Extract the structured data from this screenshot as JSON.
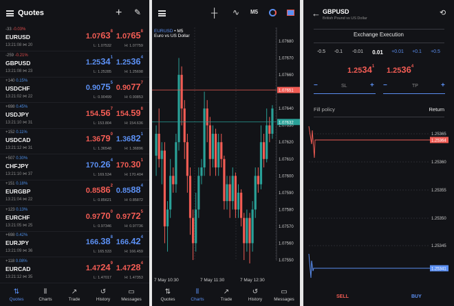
{
  "quotes": {
    "title": "Quotes",
    "rows": [
      {
        "pts": "-33",
        "pct": "-0.03%",
        "dir": "neg",
        "symbol": "EURUSD",
        "time": "13:21:08",
        "spread": "20",
        "bid_main": "1.07",
        "bid_big": "63",
        "bid_sup": "8",
        "ask_main": "1.07",
        "ask_big": "65",
        "ask_sup": "8",
        "low": "L: 1.07532",
        "high": "H: 1.07759",
        "color": "red"
      },
      {
        "pts": "-259",
        "pct": "-0.21%",
        "dir": "neg",
        "symbol": "GBPUSD",
        "time": "13:21:08",
        "spread": "23",
        "bid_main": "1.25",
        "bid_big": "34",
        "bid_sup": "1",
        "ask_main": "1.25",
        "ask_big": "36",
        "ask_sup": "4",
        "low": "L: 1.25285",
        "high": "H: 1.25698",
        "color": "blue"
      },
      {
        "pts": "+140",
        "pct": "0.15%",
        "dir": "pos",
        "symbol": "USDCHF",
        "time": "13:21:02",
        "spread": "22",
        "bid_main": "0.90",
        "bid_big": "75",
        "bid_sup": "5",
        "ask_main": "0.90",
        "ask_big": "77",
        "ask_sup": "7",
        "low": "L: 0.90499",
        "high": "H: 0.90853",
        "color": "mixed1"
      },
      {
        "pts": "+698",
        "pct": "0.45%",
        "dir": "pos",
        "symbol": "USDJPY",
        "time": "13:21:10",
        "spread": "31",
        "bid_main": "154.",
        "bid_big": "56",
        "bid_sup": "7",
        "ask_main": "154.",
        "ask_big": "59",
        "ask_sup": "8",
        "low": "L: 153.804",
        "high": "H: 154.636",
        "color": "red"
      },
      {
        "pts": "+152",
        "pct": "0.11%",
        "dir": "pos",
        "symbol": "USDCAD",
        "time": "13:21:12",
        "spread": "31",
        "bid_main": "1.36",
        "bid_big": "79",
        "bid_sup": "0",
        "ask_main": "1.36",
        "ask_big": "82",
        "ask_sup": "1",
        "low": "L: 1.36548",
        "high": "H: 1.36896",
        "color": "mixed2"
      },
      {
        "pts": "+507",
        "pct": "0.30%",
        "dir": "pos",
        "symbol": "CHFJPY",
        "time": "13:21:10",
        "spread": "37",
        "bid_main": "170.",
        "bid_big": "26",
        "bid_sup": "4",
        "ask_main": "170.",
        "ask_big": "30",
        "ask_sup": "1",
        "low": "L: 169.534",
        "high": "H: 170.404",
        "color": "mixed1"
      },
      {
        "pts": "+151",
        "pct": "0.18%",
        "dir": "pos",
        "symbol": "EURGBP",
        "time": "13:21:04",
        "spread": "22",
        "bid_main": "0.85",
        "bid_big": "86",
        "bid_sup": "2",
        "ask_main": "0.85",
        "ask_big": "88",
        "ask_sup": "4",
        "low": "L: 0.85621",
        "high": "H: 0.85872",
        "color": "mixed2"
      },
      {
        "pts": "+123",
        "pct": "0.13%",
        "dir": "pos",
        "symbol": "EURCHF",
        "time": "13:21:05",
        "spread": "25",
        "bid_main": "0.97",
        "bid_big": "70",
        "bid_sup": "0",
        "ask_main": "0.97",
        "ask_big": "72",
        "ask_sup": "5",
        "low": "L: 0.97346",
        "high": "H: 0.97736",
        "color": "mixed2"
      },
      {
        "pts": "+698",
        "pct": "0.42%",
        "dir": "pos",
        "symbol": "EURJPY",
        "time": "13:21:09",
        "spread": "36",
        "bid_main": "166.",
        "bid_big": "38",
        "bid_sup": "8",
        "ask_main": "166.",
        "ask_big": "42",
        "ask_sup": "4",
        "low": "L: 165.533",
        "high": "H: 166.459",
        "color": "blue"
      },
      {
        "pts": "+118",
        "pct": "0.08%",
        "dir": "pos",
        "symbol": "EURCAD",
        "time": "13:21:12",
        "spread": "35",
        "bid_main": "1.47",
        "bid_big": "24",
        "bid_sup": "9",
        "ask_main": "1.47",
        "ask_big": "28",
        "ask_sup": "4",
        "low": "L: 1.47017",
        "high": "H: 1.47353",
        "color": "red"
      }
    ]
  },
  "nav": [
    "Quotes",
    "Charts",
    "Trade",
    "History",
    "Messages"
  ],
  "chart": {
    "timeframe": "M5",
    "symbol": "EURUSD",
    "sep": "•",
    "description": "Euro vs US Dollar",
    "price_labels": [
      "1.07680",
      "1.07670",
      "1.07660",
      "1.07650",
      "1.07640",
      "1.07630",
      "1.07620",
      "1.07610",
      "1.07600",
      "1.07590",
      "1.07580",
      "1.07570",
      "1.07560",
      "1.07550"
    ],
    "ask_line": "1.07651",
    "bid_line": "1.07632",
    "time_labels": [
      "7 May 10:30",
      "7 May 11:30",
      "7 May 12:30"
    ],
    "accent_ask": "#f25c54",
    "accent_bid": "#2aa198"
  },
  "trade": {
    "symbol": "GBPUSD",
    "description": "British Pound vs US Dollar",
    "execution": "Exchange Execution",
    "volumes": [
      "-0.5",
      "-0.1",
      "-0.01",
      "0.01",
      "+0.01",
      "+0.1",
      "+0.5"
    ],
    "bid_main": "1.25",
    "bid_big": "34",
    "bid_sup": "1",
    "ask_main": "1.25",
    "ask_big": "36",
    "ask_sup": "4",
    "sl": "SL",
    "tp": "TP",
    "minus": "−",
    "plus": "+",
    "fill_label": "Fill policy",
    "fill_value": "Return",
    "depth_labels": [
      "1.25365",
      "1.25360",
      "1.25355",
      "1.25350",
      "1.25345"
    ],
    "ask_badge": "1.25364",
    "bid_badge": "1.25341",
    "sell": "SELL",
    "buy": "BUY"
  }
}
